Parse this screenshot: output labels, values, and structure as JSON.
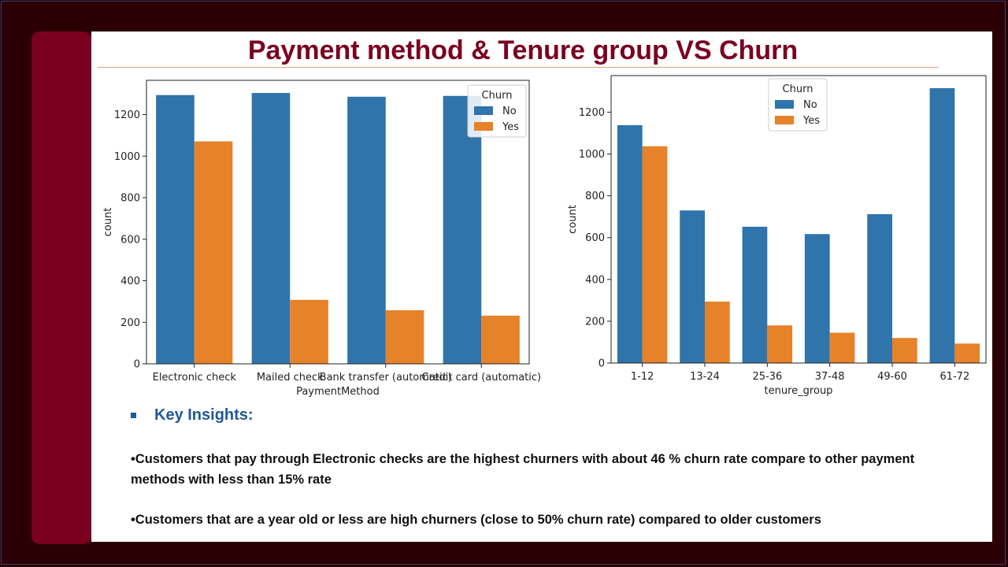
{
  "title": "Payment method & Tenure group VS Churn",
  "colors": {
    "no": "#2f74ab",
    "yes": "#e6822a",
    "title": "#7a0020",
    "insight_head": "#1f5a96"
  },
  "chart_data": [
    {
      "type": "bar",
      "categories": [
        "Electronic check",
        "Mailed check",
        "Bank transfer (automatic)",
        "Credit card (automatic)"
      ],
      "series": [
        {
          "name": "No",
          "values": [
            1294,
            1304,
            1286,
            1290
          ]
        },
        {
          "name": "Yes",
          "values": [
            1071,
            308,
            258,
            232
          ]
        }
      ],
      "xlabel": "PaymentMethod",
      "ylabel": "count",
      "yticks": [
        0,
        200,
        400,
        600,
        800,
        1000,
        1200
      ],
      "ylim": [
        0,
        1365
      ],
      "legend_title": "Churn",
      "legend_placement": "top-right",
      "grid": false
    },
    {
      "type": "bar",
      "categories": [
        "1-12",
        "13-24",
        "25-36",
        "37-48",
        "49-60",
        "61-72"
      ],
      "series": [
        {
          "name": "No",
          "values": [
            1138,
            730,
            652,
            617,
            712,
            1315
          ]
        },
        {
          "name": "Yes",
          "values": [
            1037,
            294,
            180,
            145,
            120,
            93
          ]
        }
      ],
      "xlabel": "tenure_group",
      "ylabel": "count",
      "yticks": [
        0,
        200,
        400,
        600,
        800,
        1000,
        1200
      ],
      "ylim": [
        0,
        1375
      ],
      "legend_title": "Churn",
      "legend_placement": "top-center",
      "grid": false
    }
  ],
  "insights": {
    "heading": "Key Insights:",
    "items": [
      "•Customers that pay through Electronic checks are the highest churners with about 46 % churn rate compare to other payment methods with less than 15% rate",
      "•Customers that are a year old or less are high churners (close to 50% churn rate) compared to older customers"
    ]
  }
}
